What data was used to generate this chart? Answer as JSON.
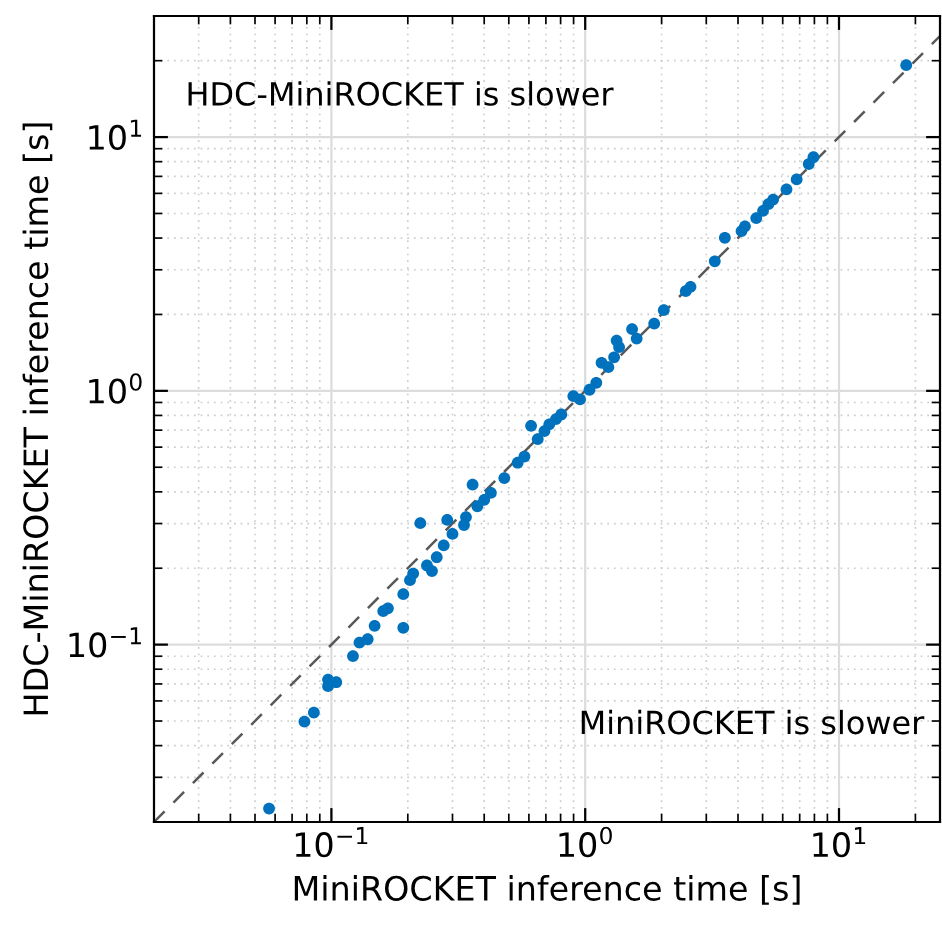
{
  "chart_data": {
    "type": "scatter",
    "xlabel": "MiniROCKET inference time [s]",
    "ylabel": "HDC-MiniROCKET inference time [s]",
    "annotations": [
      "HDC-MiniROCKET is slower",
      "MiniROCKET is slower"
    ],
    "log": "xy",
    "grid": true,
    "marker": "circle",
    "xlim": [
      0.02,
      25
    ],
    "ylim": [
      0.02,
      30
    ],
    "xticks": [
      {
        "value": 0.1,
        "label": "10$^{−1}$"
      },
      {
        "value": 1,
        "label": "10$^{0}$"
      },
      {
        "value": 10,
        "label": "10$^{1}$"
      }
    ],
    "yticks": [
      {
        "value": 0.1,
        "label": "10$^{−1}$"
      },
      {
        "value": 1,
        "label": "10$^{0}$"
      },
      {
        "value": 10,
        "label": "10$^{1}$"
      }
    ],
    "series": [
      {
        "type": "line",
        "color": "#595959",
        "line_style": "dashed",
        "marker": "none",
        "x": [
          0.02,
          25
        ],
        "values": [
          0.02,
          25
        ]
      },
      {
        "color": "#0072bd",
        "x": [
          0.0568,
          0.0783,
          0.0853,
          0.097,
          0.097,
          0.1045,
          0.1216,
          0.129,
          0.139,
          0.148,
          0.16,
          0.167,
          0.192,
          0.192,
          0.204,
          0.21,
          0.224,
          0.238,
          0.249,
          0.26,
          0.277,
          0.286,
          0.3,
          0.333,
          0.339,
          0.36,
          0.376,
          0.4,
          0.425,
          0.48,
          0.542,
          0.576,
          0.612,
          0.65,
          0.691,
          0.722,
          0.767,
          0.805,
          0.898,
          0.954,
          1.04,
          1.106,
          1.16,
          1.234,
          1.3,
          1.33,
          1.36,
          1.53,
          1.595,
          1.87,
          2.04,
          2.49,
          2.6,
          3.24,
          3.55,
          4.13,
          4.26,
          4.72,
          5.02,
          5.27,
          5.5,
          6.21,
          6.81,
          7.6,
          7.93,
          18.4
        ],
        "values": [
          0.0226,
          0.0497,
          0.054,
          0.0686,
          0.0728,
          0.0711,
          0.0901,
          0.1019,
          0.105,
          0.1186,
          0.1355,
          0.139,
          0.1165,
          0.158,
          0.1795,
          0.1906,
          0.301,
          0.205,
          0.195,
          0.221,
          0.246,
          0.31,
          0.273,
          0.296,
          0.318,
          0.427,
          0.351,
          0.372,
          0.396,
          0.453,
          0.521,
          0.551,
          0.728,
          0.645,
          0.694,
          0.738,
          0.774,
          0.807,
          0.953,
          0.925,
          1.01,
          1.076,
          1.29,
          1.24,
          1.356,
          1.578,
          1.486,
          1.75,
          1.607,
          1.84,
          2.08,
          2.47,
          2.57,
          3.24,
          4.01,
          4.26,
          4.45,
          4.79,
          5.12,
          5.44,
          5.67,
          6.22,
          6.81,
          7.83,
          8.33,
          19.2
        ]
      }
    ]
  }
}
